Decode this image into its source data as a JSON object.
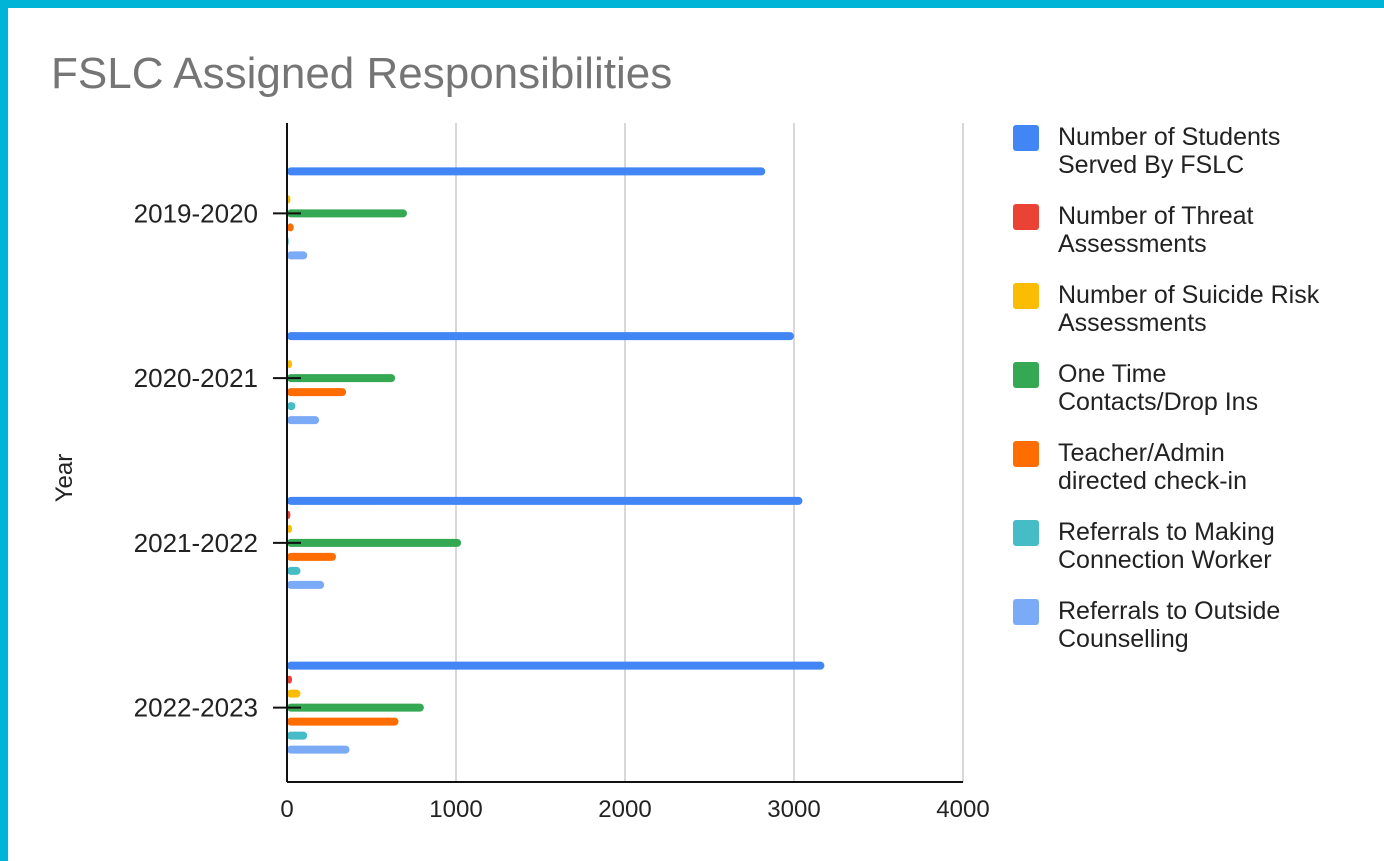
{
  "chart_data": {
    "type": "bar",
    "orientation": "horizontal",
    "title": "FSLC Assigned Responsibilities",
    "ylabel": "Year",
    "xlabel": "",
    "categories": [
      "2019-2020",
      "2020-2021",
      "2021-2022",
      "2022-2023"
    ],
    "xlim": [
      0,
      4000
    ],
    "xticks": [
      0,
      1000,
      2000,
      3000,
      4000
    ],
    "grid": true,
    "legend_position": "right",
    "series": [
      {
        "name": "Number of Students Served By FSLC",
        "color": "#4285f4",
        "values": [
          2830,
          3000,
          3050,
          3180
        ]
      },
      {
        "name": "Number of Threat Assessments",
        "color": "#ea4335",
        "values": [
          0,
          0,
          20,
          30
        ]
      },
      {
        "name": "Number of Suicide Risk Assessments",
        "color": "#fbbc04",
        "values": [
          20,
          30,
          30,
          80
        ]
      },
      {
        "name": "One Time Contacts/Drop Ins",
        "color": "#34a853",
        "values": [
          710,
          640,
          1030,
          810
        ]
      },
      {
        "name": "Teacher/Admin directed check-in",
        "color": "#ff6d01",
        "values": [
          40,
          350,
          290,
          660
        ]
      },
      {
        "name": "Referrals to Making Connection Worker",
        "color": "#46bdc6",
        "values": [
          10,
          50,
          80,
          120
        ]
      },
      {
        "name": "Referrals to Outside Counselling",
        "color": "#7baaf7",
        "values": [
          120,
          190,
          220,
          370
        ]
      }
    ]
  },
  "legend": [
    {
      "line1": "Number of Students",
      "line2": "Served By FSLC",
      "color": "#4285f4"
    },
    {
      "line1": "Number of Threat",
      "line2": "Assessments",
      "color": "#ea4335"
    },
    {
      "line1": "Number of Suicide Risk",
      "line2": "Assessments",
      "color": "#fbbc04"
    },
    {
      "line1": "One Time",
      "line2": "Contacts/Drop Ins",
      "color": "#34a853"
    },
    {
      "line1": "Teacher/Admin",
      "line2": "directed check-in",
      "color": "#ff6d01"
    },
    {
      "line1": "Referrals to Making",
      "line2": "Connection Worker",
      "color": "#46bdc6"
    },
    {
      "line1": "Referrals to Outside",
      "line2": "Counselling",
      "color": "#7baaf7"
    }
  ]
}
